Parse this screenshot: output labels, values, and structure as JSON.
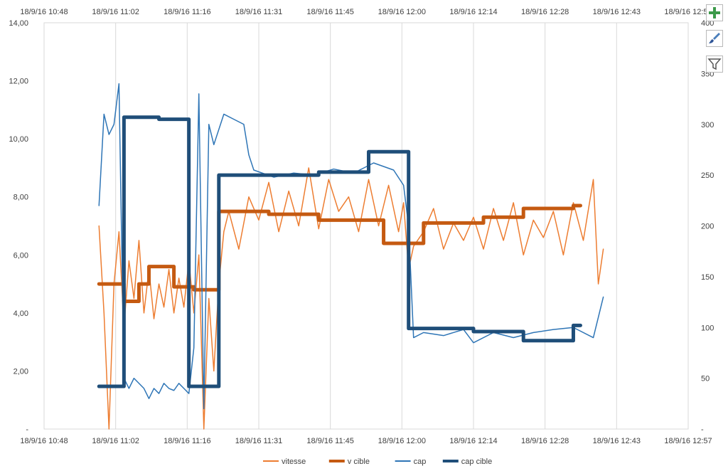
{
  "chart_data": {
    "type": "line",
    "title": "",
    "x_ticks": [
      "18/9/16 10:48",
      "18/9/16 11:02",
      "18/9/16 11:16",
      "18/9/16 11:31",
      "18/9/16 11:45",
      "18/9/16 12:00",
      "18/9/16 12:14",
      "18/9/16 12:28",
      "18/9/16 12:43",
      "18/9/16 12:57"
    ],
    "x_range": [
      "18/9/16 10:48",
      "18/9/16 12:57"
    ],
    "y_left": {
      "min": 0,
      "max": 14,
      "step": 2,
      "tick_labels": [
        "-",
        "2,00",
        "4,00",
        "6,00",
        "8,00",
        "10,00",
        "12,00",
        "14,00"
      ]
    },
    "y_right": {
      "min": 0,
      "max": 400,
      "step": 50,
      "tick_labels": [
        "-",
        "50",
        "100",
        "150",
        "200",
        "250",
        "300",
        "350",
        "400"
      ]
    },
    "grid": "vertical",
    "legend_position": "bottom",
    "series": [
      {
        "name": "vitesse",
        "axis": "left",
        "color": "#ED7D31",
        "width": 1.5,
        "style": "noisy",
        "points": [
          [
            "18/9/16 10:59",
            7.0
          ],
          [
            "18/9/16 11:00",
            4.0
          ],
          [
            "18/9/16 11:01",
            0.0
          ],
          [
            "18/9/16 11:02",
            5.0
          ],
          [
            "18/9/16 11:03",
            6.8
          ],
          [
            "18/9/16 11:04",
            3.5
          ],
          [
            "18/9/16 11:05",
            5.8
          ],
          [
            "18/9/16 11:06",
            4.5
          ],
          [
            "18/9/16 11:07",
            6.5
          ],
          [
            "18/9/16 11:08",
            4.0
          ],
          [
            "18/9/16 11:09",
            5.5
          ],
          [
            "18/9/16 11:10",
            3.8
          ],
          [
            "18/9/16 11:11",
            5.0
          ],
          [
            "18/9/16 11:12",
            4.2
          ],
          [
            "18/9/16 11:13",
            5.5
          ],
          [
            "18/9/16 11:14",
            4.0
          ],
          [
            "18/9/16 11:15",
            5.2
          ],
          [
            "18/9/16 11:16",
            4.2
          ],
          [
            "18/9/16 11:17",
            5.8
          ],
          [
            "18/9/16 11:18",
            4.0
          ],
          [
            "18/9/16 11:19",
            6.0
          ],
          [
            "18/9/16 11:20",
            0.0
          ],
          [
            "18/9/16 11:21",
            4.5
          ],
          [
            "18/9/16 11:22",
            2.0
          ],
          [
            "18/9/16 11:23",
            5.0
          ],
          [
            "18/9/16 11:24",
            6.8
          ],
          [
            "18/9/16 11:25",
            7.5
          ],
          [
            "18/9/16 11:27",
            6.2
          ],
          [
            "18/9/16 11:29",
            8.0
          ],
          [
            "18/9/16 11:31",
            7.2
          ],
          [
            "18/9/16 11:33",
            8.5
          ],
          [
            "18/9/16 11:35",
            6.8
          ],
          [
            "18/9/16 11:37",
            8.2
          ],
          [
            "18/9/16 11:39",
            7.0
          ],
          [
            "18/9/16 11:41",
            9.0
          ],
          [
            "18/9/16 11:43",
            6.9
          ],
          [
            "18/9/16 11:45",
            8.6
          ],
          [
            "18/9/16 11:47",
            7.5
          ],
          [
            "18/9/16 11:49",
            8.0
          ],
          [
            "18/9/16 11:51",
            6.8
          ],
          [
            "18/9/16 11:53",
            8.6
          ],
          [
            "18/9/16 11:55",
            7.0
          ],
          [
            "18/9/16 11:57",
            8.4
          ],
          [
            "18/9/16 11:59",
            6.8
          ],
          [
            "18/9/16 12:00",
            7.8
          ],
          [
            "18/9/16 12:01",
            5.5
          ],
          [
            "18/9/16 12:02",
            6.3
          ],
          [
            "18/9/16 12:04",
            6.8
          ],
          [
            "18/9/16 12:06",
            7.6
          ],
          [
            "18/9/16 12:08",
            6.2
          ],
          [
            "18/9/16 12:10",
            7.1
          ],
          [
            "18/9/16 12:12",
            6.5
          ],
          [
            "18/9/16 12:14",
            7.3
          ],
          [
            "18/9/16 12:16",
            6.2
          ],
          [
            "18/9/16 12:18",
            7.6
          ],
          [
            "18/9/16 12:20",
            6.5
          ],
          [
            "18/9/16 12:22",
            7.8
          ],
          [
            "18/9/16 12:24",
            6.0
          ],
          [
            "18/9/16 12:26",
            7.2
          ],
          [
            "18/9/16 12:28",
            6.6
          ],
          [
            "18/9/16 12:30",
            7.5
          ],
          [
            "18/9/16 12:32",
            6.0
          ],
          [
            "18/9/16 12:34",
            7.8
          ],
          [
            "18/9/16 12:36",
            6.5
          ],
          [
            "18/9/16 12:38",
            8.6
          ],
          [
            "18/9/16 12:39",
            5.0
          ],
          [
            "18/9/16 12:40",
            6.2
          ]
        ]
      },
      {
        "name": "v cible",
        "axis": "left",
        "color": "#C55A11",
        "width": 5,
        "style": "step",
        "points": [
          [
            "18/9/16 10:59",
            5.0
          ],
          [
            "18/9/16 11:04",
            4.4
          ],
          [
            "18/9/16 11:07",
            5.0
          ],
          [
            "18/9/16 11:09",
            5.6
          ],
          [
            "18/9/16 11:14",
            4.9
          ],
          [
            "18/9/16 11:18",
            4.8
          ],
          [
            "18/9/16 11:23",
            7.5
          ],
          [
            "18/9/16 11:33",
            7.4
          ],
          [
            "18/9/16 11:43",
            7.2
          ],
          [
            "18/9/16 11:56",
            6.4
          ],
          [
            "18/9/16 12:04",
            7.1
          ],
          [
            "18/9/16 12:16",
            7.3
          ],
          [
            "18/9/16 12:24",
            7.6
          ],
          [
            "18/9/16 12:34",
            7.7
          ]
        ]
      },
      {
        "name": "cap",
        "axis": "right",
        "color": "#2E75B6",
        "width": 1.5,
        "style": "noisy",
        "points": [
          [
            "18/9/16 10:59",
            220
          ],
          [
            "18/9/16 11:00",
            310
          ],
          [
            "18/9/16 11:01",
            290
          ],
          [
            "18/9/16 11:02",
            300
          ],
          [
            "18/9/16 11:03",
            340
          ],
          [
            "18/9/16 11:04",
            50
          ],
          [
            "18/9/16 11:05",
            40
          ],
          [
            "18/9/16 11:06",
            50
          ],
          [
            "18/9/16 11:07",
            45
          ],
          [
            "18/9/16 11:08",
            40
          ],
          [
            "18/9/16 11:09",
            30
          ],
          [
            "18/9/16 11:10",
            40
          ],
          [
            "18/9/16 11:11",
            35
          ],
          [
            "18/9/16 11:12",
            45
          ],
          [
            "18/9/16 11:13",
            40
          ],
          [
            "18/9/16 11:14",
            38
          ],
          [
            "18/9/16 11:15",
            45
          ],
          [
            "18/9/16 11:16",
            40
          ],
          [
            "18/9/16 11:17",
            35
          ],
          [
            "18/9/16 11:18",
            80
          ],
          [
            "18/9/16 11:19",
            330
          ],
          [
            "18/9/16 11:20",
            20
          ],
          [
            "18/9/16 11:21",
            300
          ],
          [
            "18/9/16 11:22",
            280
          ],
          [
            "18/9/16 11:24",
            310
          ],
          [
            "18/9/16 11:26",
            305
          ],
          [
            "18/9/16 11:28",
            300
          ],
          [
            "18/9/16 11:29",
            270
          ],
          [
            "18/9/16 11:30",
            255
          ],
          [
            "18/9/16 11:34",
            248
          ],
          [
            "18/9/16 11:38",
            252
          ],
          [
            "18/9/16 11:42",
            250
          ],
          [
            "18/9/16 11:46",
            256
          ],
          [
            "18/9/16 11:50",
            252
          ],
          [
            "18/9/16 11:54",
            262
          ],
          [
            "18/9/16 11:58",
            255
          ],
          [
            "18/9/16 12:00",
            240
          ],
          [
            "18/9/16 12:01",
            200
          ],
          [
            "18/9/16 12:02",
            90
          ],
          [
            "18/9/16 12:04",
            95
          ],
          [
            "18/9/16 12:08",
            92
          ],
          [
            "18/9/16 12:12",
            98
          ],
          [
            "18/9/16 12:14",
            85
          ],
          [
            "18/9/16 12:18",
            95
          ],
          [
            "18/9/16 12:22",
            90
          ],
          [
            "18/9/16 12:26",
            95
          ],
          [
            "18/9/16 12:30",
            98
          ],
          [
            "18/9/16 12:34",
            100
          ],
          [
            "18/9/16 12:38",
            90
          ],
          [
            "18/9/16 12:40",
            130
          ]
        ]
      },
      {
        "name": "cap cible",
        "axis": "right",
        "color": "#1F4E79",
        "width": 5,
        "style": "step",
        "points": [
          [
            "18/9/16 10:59",
            42
          ],
          [
            "18/9/16 11:04",
            307
          ],
          [
            "18/9/16 11:11",
            305
          ],
          [
            "18/9/16 11:17",
            42
          ],
          [
            "18/9/16 11:23",
            250
          ],
          [
            "18/9/16 11:43",
            253
          ],
          [
            "18/9/16 11:53",
            273
          ],
          [
            "18/9/16 12:01",
            99
          ],
          [
            "18/9/16 12:14",
            96
          ],
          [
            "18/9/16 12:24",
            87
          ],
          [
            "18/9/16 12:34",
            102
          ]
        ]
      }
    ]
  },
  "toolbar": {
    "chart_elements_icon": "plus-icon",
    "chart_styles_icon": "brush-icon",
    "chart_filters_icon": "funnel-icon"
  }
}
